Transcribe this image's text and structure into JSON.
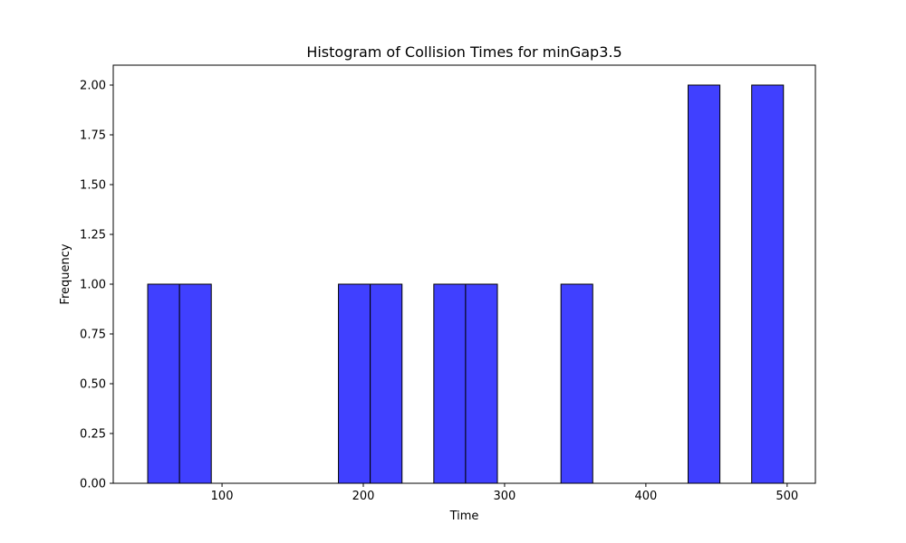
{
  "chart_data": {
    "type": "bar",
    "title": "Histogram of Collision Times for minGap3.5",
    "xlabel": "Time",
    "ylabel": "Frequency",
    "xlim": [
      23.0,
      520.0
    ],
    "ylim": [
      0,
      2.1
    ],
    "bar_color": "#4040ff",
    "edge_color": "#000000",
    "grid": false,
    "legend": "none",
    "bins": [
      {
        "x0": 47.4,
        "x1": 69.9,
        "count": 1
      },
      {
        "x0": 69.9,
        "x1": 92.4,
        "count": 1
      },
      {
        "x0": 182.4,
        "x1": 204.9,
        "count": 1
      },
      {
        "x0": 204.9,
        "x1": 227.4,
        "count": 1
      },
      {
        "x0": 249.9,
        "x1": 272.4,
        "count": 1
      },
      {
        "x0": 272.4,
        "x1": 294.9,
        "count": 1
      },
      {
        "x0": 339.9,
        "x1": 362.4,
        "count": 1
      },
      {
        "x0": 429.9,
        "x1": 452.4,
        "count": 2
      },
      {
        "x0": 474.9,
        "x1": 497.4,
        "count": 2
      }
    ],
    "x_ticks": [
      {
        "value": 100,
        "label": "100"
      },
      {
        "value": 200,
        "label": "200"
      },
      {
        "value": 300,
        "label": "300"
      },
      {
        "value": 400,
        "label": "400"
      },
      {
        "value": 500,
        "label": "500"
      }
    ],
    "y_ticks": [
      {
        "value": 0,
        "label": "0.00"
      },
      {
        "value": 0.25,
        "label": "0.25"
      },
      {
        "value": 0.5,
        "label": "0.50"
      },
      {
        "value": 0.75,
        "label": "0.75"
      },
      {
        "value": 1.0,
        "label": "1.00"
      },
      {
        "value": 1.25,
        "label": "1.25"
      },
      {
        "value": 1.5,
        "label": "1.50"
      },
      {
        "value": 1.75,
        "label": "1.75"
      },
      {
        "value": 2.0,
        "label": "2.00"
      }
    ]
  }
}
